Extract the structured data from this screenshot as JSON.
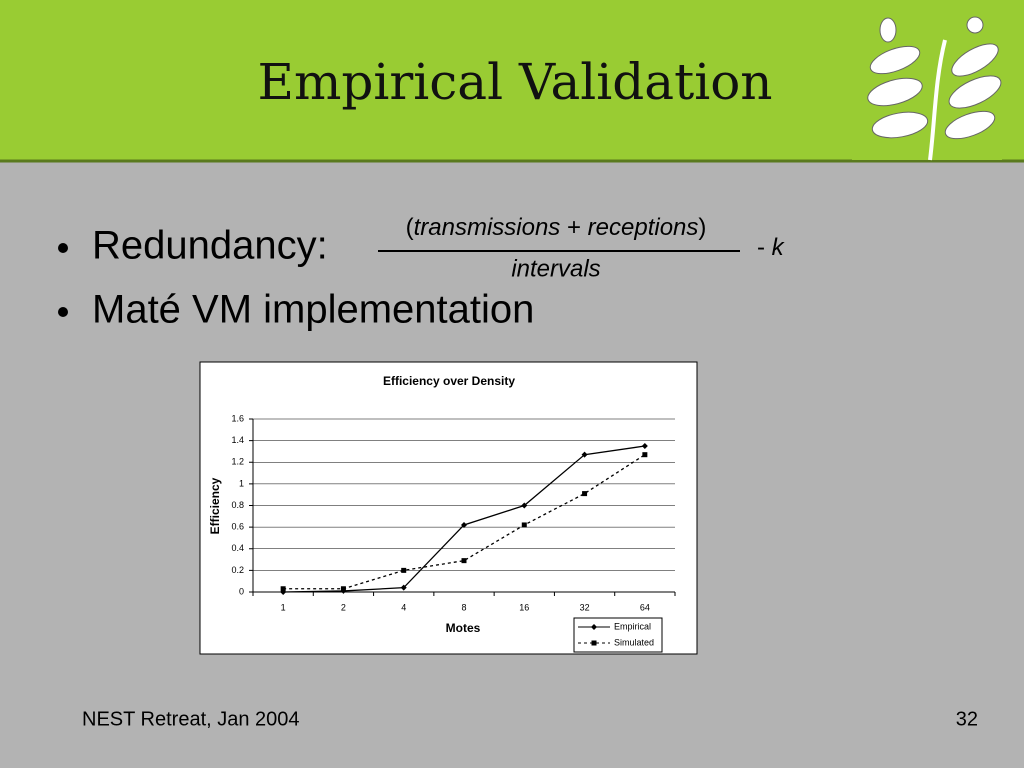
{
  "header": {
    "title": "Empirical Validation"
  },
  "bullets": [
    "Redundancy:",
    "Maté VM implementation"
  ],
  "formula": {
    "numerator": [
      "(",
      "transmissions",
      "+",
      "receptions",
      ")"
    ],
    "denominator": "intervals",
    "suffix": [
      "-",
      "k"
    ]
  },
  "chart_data": {
    "type": "line",
    "title": "Efficiency over Density",
    "x_label": "Motes",
    "y_label": "Efficiency",
    "categories": [
      "1",
      "2",
      "4",
      "8",
      "16",
      "32",
      "64"
    ],
    "series": [
      {
        "name": "Empirical",
        "color": "#000000",
        "line_style": "solid",
        "marker": "diamond",
        "values": [
          0,
          0.01,
          0.04,
          0.62,
          0.8,
          1.27,
          1.35
        ]
      },
      {
        "name": "Simulated",
        "color": "#000000",
        "line_style": "dashed",
        "marker": "square",
        "values": [
          0.03,
          0.03,
          0.2,
          0.29,
          0.62,
          0.91,
          1.27
        ]
      }
    ],
    "ylim": [
      0,
      1.6
    ],
    "yticks": [
      0,
      0.2,
      0.4,
      0.6,
      0.8,
      1,
      1.2,
      1.4,
      1.6
    ],
    "grid": true,
    "legend": "bottom-right"
  },
  "footer": {
    "left": "NEST Retreat, Jan 2004",
    "right": "32"
  }
}
